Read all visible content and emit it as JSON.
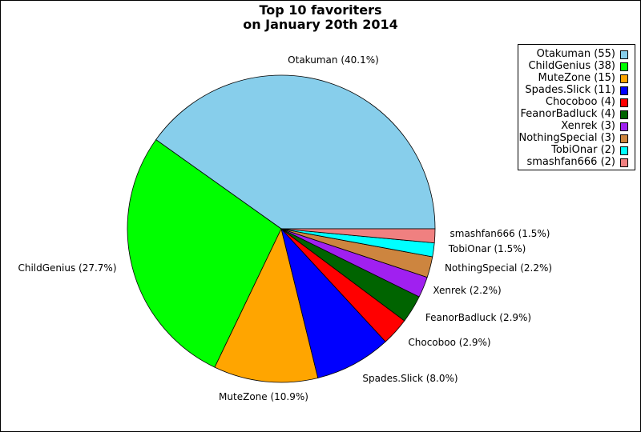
{
  "chart_data": {
    "type": "pie",
    "title_lines": [
      "Top 10 favoriters",
      "on January 20th 2014"
    ],
    "start_angle_deg": 0,
    "direction": "counterclockwise",
    "legend_position": "top-right",
    "slices": [
      {
        "name": "Otakuman",
        "value": 55,
        "legend_label": "Otakuman (55)",
        "slice_label": "Otakuman (40.1%)",
        "color": "#87ceeb"
      },
      {
        "name": "ChildGenius",
        "value": 38,
        "legend_label": "ChildGenius (38)",
        "slice_label": "ChildGenius (27.7%)",
        "color": "#00ff00"
      },
      {
        "name": "MuteZone",
        "value": 15,
        "legend_label": "MuteZone (15)",
        "slice_label": "MuteZone (10.9%)",
        "color": "#ffa500"
      },
      {
        "name": "Spades.Slick",
        "value": 11,
        "legend_label": "Spades.Slick (11)",
        "slice_label": "Spades.Slick (8.0%)",
        "color": "#0000ff"
      },
      {
        "name": "Chocoboo",
        "value": 4,
        "legend_label": "Chocoboo (4)",
        "slice_label": "Chocoboo (2.9%)",
        "color": "#ff0000"
      },
      {
        "name": "FeanorBadluck",
        "value": 4,
        "legend_label": "FeanorBadluck (4)",
        "slice_label": "FeanorBadluck (2.9%)",
        "color": "#006400"
      },
      {
        "name": "Xenrek",
        "value": 3,
        "legend_label": "Xenrek (3)",
        "slice_label": "Xenrek (2.2%)",
        "color": "#a020f0"
      },
      {
        "name": "NothingSpecial",
        "value": 3,
        "legend_label": "NothingSpecial (3)",
        "slice_label": "NothingSpecial (2.2%)",
        "color": "#cd853f"
      },
      {
        "name": "TobiOnar",
        "value": 2,
        "legend_label": "TobiOnar (2)",
        "slice_label": "TobiOnar (1.5%)",
        "color": "#00ffff"
      },
      {
        "name": "smashfan666",
        "value": 2,
        "legend_label": "smashfan666 (2)",
        "slice_label": "smashfan666 (1.5%)",
        "color": "#f08080"
      }
    ]
  }
}
